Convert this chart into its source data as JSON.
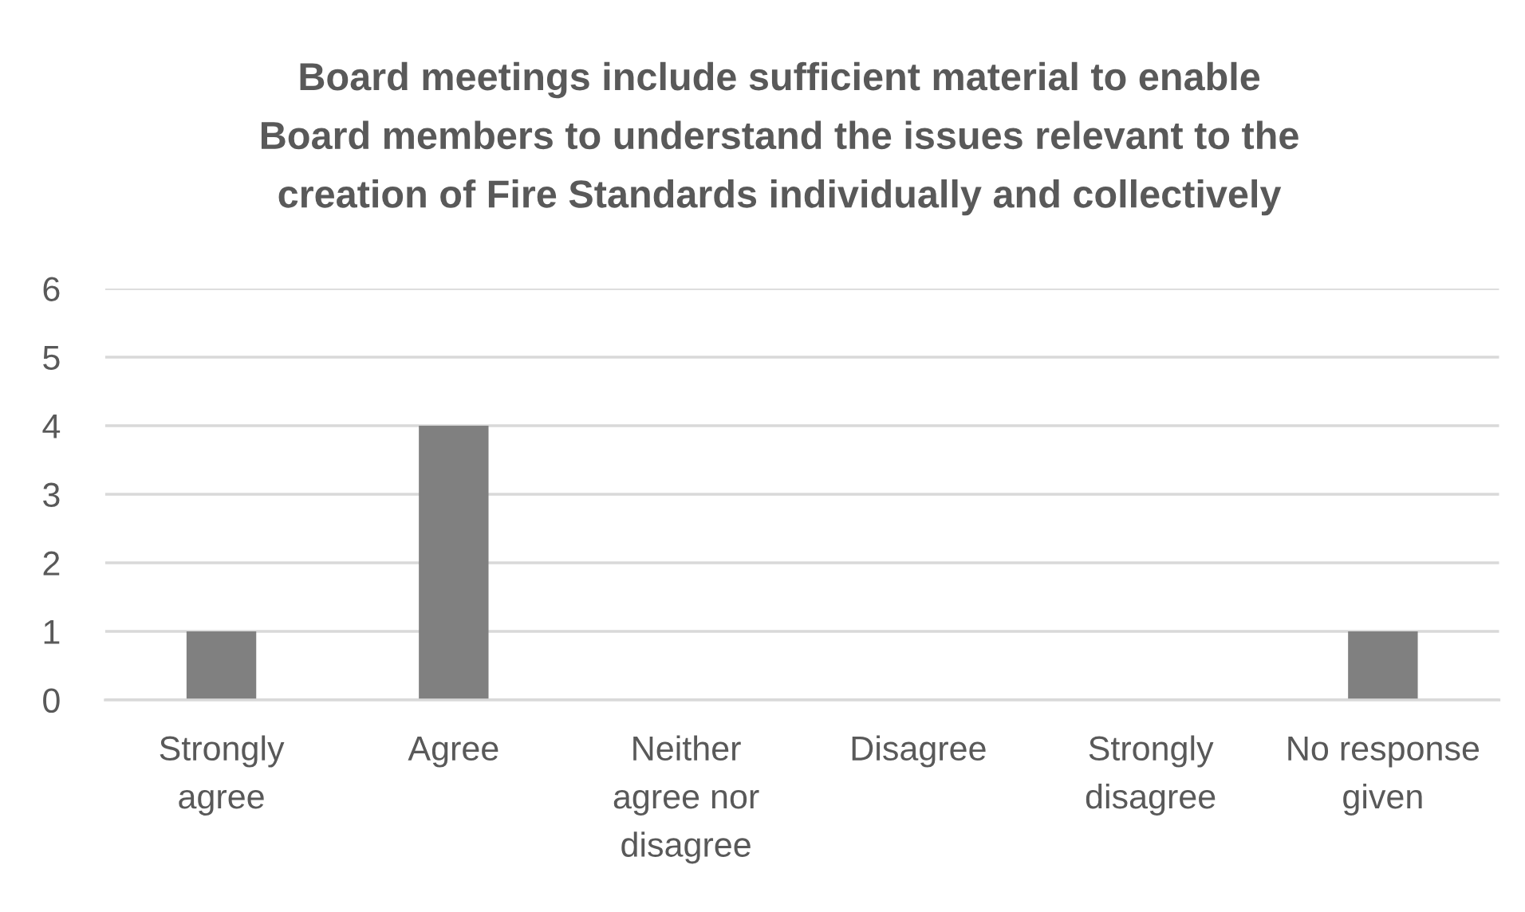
{
  "chart_data": {
    "type": "bar",
    "title": "Board meetings include sufficient material to enable Board members to understand the issues relevant to the creation of Fire Standards individually and collectively",
    "categories": [
      "Strongly agree",
      "Agree",
      "Neither agree nor disagree",
      "Disagree",
      "Strongly disagree",
      "No response given"
    ],
    "values": [
      1,
      4,
      0,
      0,
      0,
      1
    ],
    "color": "#808080",
    "ylim": [
      0,
      6
    ],
    "yticks": [
      0,
      1,
      2,
      3,
      4,
      5,
      6
    ],
    "grid": "y"
  }
}
